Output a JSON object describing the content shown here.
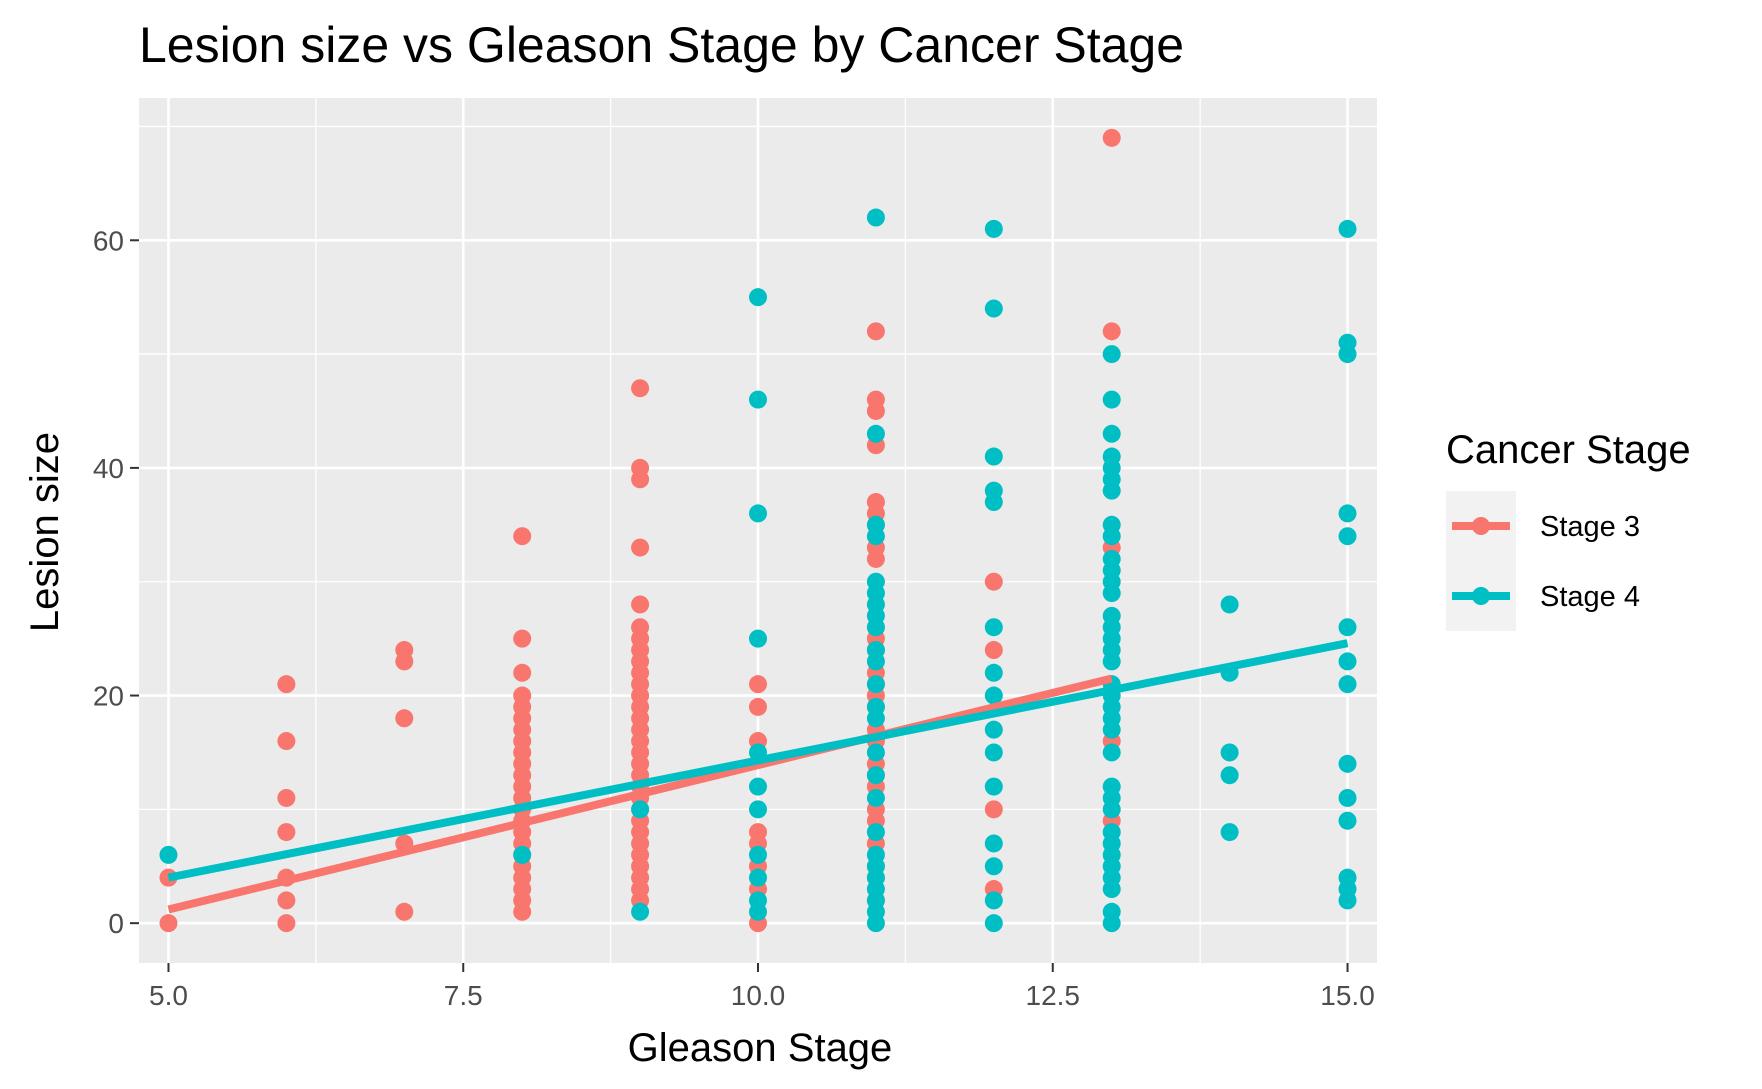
{
  "chart_data": {
    "type": "scatter",
    "title": "Lesion size vs Gleason Stage by Cancer Stage",
    "xlabel": "Gleason Stage",
    "ylabel": "Lesion size",
    "xlim": [
      4.75,
      15.25
    ],
    "ylim": [
      -3.5,
      72.5
    ],
    "x_ticks": [
      5.0,
      7.5,
      10.0,
      12.5,
      15.0
    ],
    "x_tick_labels": [
      "5.0",
      "7.5",
      "10.0",
      "12.5",
      "15.0"
    ],
    "y_ticks": [
      0,
      20,
      40,
      60
    ],
    "y_tick_labels": [
      "0",
      "20",
      "40",
      "60"
    ],
    "grid": true,
    "legend": {
      "title": "Cancer Stage",
      "placement": "right"
    },
    "series": [
      {
        "name": "Stage 3",
        "color": "#F8766D",
        "points": [
          [
            5,
            0
          ],
          [
            5,
            4
          ],
          [
            6,
            0
          ],
          [
            6,
            2
          ],
          [
            6,
            4
          ],
          [
            6,
            8
          ],
          [
            6,
            11
          ],
          [
            6,
            16
          ],
          [
            6,
            21
          ],
          [
            7,
            1
          ],
          [
            7,
            7
          ],
          [
            7,
            18
          ],
          [
            7,
            23
          ],
          [
            7,
            24
          ],
          [
            8,
            1
          ],
          [
            8,
            2
          ],
          [
            8,
            3
          ],
          [
            8,
            4
          ],
          [
            8,
            5
          ],
          [
            8,
            6
          ],
          [
            8,
            7
          ],
          [
            8,
            8
          ],
          [
            8,
            9
          ],
          [
            8,
            10
          ],
          [
            8,
            11
          ],
          [
            8,
            12
          ],
          [
            8,
            13
          ],
          [
            8,
            14
          ],
          [
            8,
            15
          ],
          [
            8,
            16
          ],
          [
            8,
            17
          ],
          [
            8,
            18
          ],
          [
            8,
            19
          ],
          [
            8,
            20
          ],
          [
            8,
            22
          ],
          [
            8,
            25
          ],
          [
            8,
            34
          ],
          [
            9,
            2
          ],
          [
            9,
            3
          ],
          [
            9,
            4
          ],
          [
            9,
            5
          ],
          [
            9,
            6
          ],
          [
            9,
            7
          ],
          [
            9,
            8
          ],
          [
            9,
            9
          ],
          [
            9,
            10
          ],
          [
            9,
            11
          ],
          [
            9,
            12
          ],
          [
            9,
            13
          ],
          [
            9,
            14
          ],
          [
            9,
            15
          ],
          [
            9,
            16
          ],
          [
            9,
            17
          ],
          [
            9,
            18
          ],
          [
            9,
            19
          ],
          [
            9,
            20
          ],
          [
            9,
            21
          ],
          [
            9,
            22
          ],
          [
            9,
            23
          ],
          [
            9,
            24
          ],
          [
            9,
            25
          ],
          [
            9,
            26
          ],
          [
            9,
            28
          ],
          [
            9,
            33
          ],
          [
            9,
            39
          ],
          [
            9,
            40
          ],
          [
            9,
            47
          ],
          [
            10,
            0
          ],
          [
            10,
            3
          ],
          [
            10,
            5
          ],
          [
            10,
            7
          ],
          [
            10,
            8
          ],
          [
            10,
            16
          ],
          [
            10,
            19
          ],
          [
            10,
            21
          ],
          [
            11,
            2
          ],
          [
            11,
            4
          ],
          [
            11,
            5
          ],
          [
            11,
            7
          ],
          [
            11,
            9
          ],
          [
            11,
            10
          ],
          [
            11,
            12
          ],
          [
            11,
            13
          ],
          [
            11,
            14
          ],
          [
            11,
            16
          ],
          [
            11,
            17
          ],
          [
            11,
            19
          ],
          [
            11,
            20
          ],
          [
            11,
            21
          ],
          [
            11,
            22
          ],
          [
            11,
            24
          ],
          [
            11,
            25
          ],
          [
            11,
            26
          ],
          [
            11,
            32
          ],
          [
            11,
            33
          ],
          [
            11,
            35
          ],
          [
            11,
            36
          ],
          [
            11,
            37
          ],
          [
            11,
            42
          ],
          [
            11,
            45
          ],
          [
            11,
            46
          ],
          [
            11,
            52
          ],
          [
            12,
            3
          ],
          [
            12,
            10
          ],
          [
            12,
            24
          ],
          [
            12,
            30
          ],
          [
            13,
            9
          ],
          [
            13,
            16
          ],
          [
            13,
            33
          ],
          [
            13,
            52
          ],
          [
            13,
            69
          ]
        ]
      },
      {
        "name": "Stage 4",
        "color": "#00BFC4",
        "points": [
          [
            5,
            6
          ],
          [
            8,
            6
          ],
          [
            9,
            1
          ],
          [
            9,
            10
          ],
          [
            10,
            1
          ],
          [
            10,
            2
          ],
          [
            10,
            4
          ],
          [
            10,
            6
          ],
          [
            10,
            10
          ],
          [
            10,
            12
          ],
          [
            10,
            15
          ],
          [
            10,
            25
          ],
          [
            10,
            36
          ],
          [
            10,
            46
          ],
          [
            10,
            55
          ],
          [
            11,
            0
          ],
          [
            11,
            1
          ],
          [
            11,
            2
          ],
          [
            11,
            3
          ],
          [
            11,
            4
          ],
          [
            11,
            5
          ],
          [
            11,
            6
          ],
          [
            11,
            8
          ],
          [
            11,
            11
          ],
          [
            11,
            13
          ],
          [
            11,
            15
          ],
          [
            11,
            18
          ],
          [
            11,
            19
          ],
          [
            11,
            21
          ],
          [
            11,
            23
          ],
          [
            11,
            24
          ],
          [
            11,
            26
          ],
          [
            11,
            27
          ],
          [
            11,
            28
          ],
          [
            11,
            29
          ],
          [
            11,
            30
          ],
          [
            11,
            34
          ],
          [
            11,
            35
          ],
          [
            11,
            43
          ],
          [
            11,
            62
          ],
          [
            12,
            0
          ],
          [
            12,
            2
          ],
          [
            12,
            5
          ],
          [
            12,
            7
          ],
          [
            12,
            12
          ],
          [
            12,
            15
          ],
          [
            12,
            17
          ],
          [
            12,
            20
          ],
          [
            12,
            22
          ],
          [
            12,
            26
          ],
          [
            12,
            37
          ],
          [
            12,
            38
          ],
          [
            12,
            41
          ],
          [
            12,
            54
          ],
          [
            12,
            61
          ],
          [
            13,
            0
          ],
          [
            13,
            1
          ],
          [
            13,
            3
          ],
          [
            13,
            4
          ],
          [
            13,
            5
          ],
          [
            13,
            6
          ],
          [
            13,
            7
          ],
          [
            13,
            8
          ],
          [
            13,
            10
          ],
          [
            13,
            11
          ],
          [
            13,
            12
          ],
          [
            13,
            15
          ],
          [
            13,
            17
          ],
          [
            13,
            18
          ],
          [
            13,
            19
          ],
          [
            13,
            20
          ],
          [
            13,
            21
          ],
          [
            13,
            23
          ],
          [
            13,
            24
          ],
          [
            13,
            25
          ],
          [
            13,
            26
          ],
          [
            13,
            27
          ],
          [
            13,
            29
          ],
          [
            13,
            30
          ],
          [
            13,
            31
          ],
          [
            13,
            32
          ],
          [
            13,
            34
          ],
          [
            13,
            35
          ],
          [
            13,
            38
          ],
          [
            13,
            39
          ],
          [
            13,
            40
          ],
          [
            13,
            41
          ],
          [
            13,
            43
          ],
          [
            13,
            46
          ],
          [
            13,
            50
          ],
          [
            14,
            8
          ],
          [
            14,
            13
          ],
          [
            14,
            15
          ],
          [
            14,
            22
          ],
          [
            14,
            28
          ],
          [
            15,
            2
          ],
          [
            15,
            3
          ],
          [
            15,
            4
          ],
          [
            15,
            9
          ],
          [
            15,
            11
          ],
          [
            15,
            14
          ],
          [
            15,
            21
          ],
          [
            15,
            23
          ],
          [
            15,
            26
          ],
          [
            15,
            34
          ],
          [
            15,
            36
          ],
          [
            15,
            50
          ],
          [
            15,
            51
          ],
          [
            15,
            61
          ]
        ]
      }
    ],
    "trend_lines": [
      {
        "series": "Stage 3",
        "color": "#F8766D",
        "x": [
          5,
          13
        ],
        "y": [
          1.2,
          21.5
        ]
      },
      {
        "series": "Stage 4",
        "color": "#00BFC4",
        "x": [
          5,
          15
        ],
        "y": [
          4.0,
          24.6
        ]
      }
    ]
  }
}
